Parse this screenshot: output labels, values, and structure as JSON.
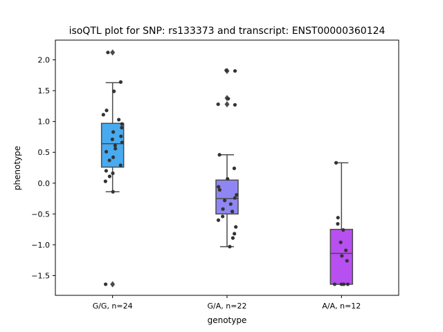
{
  "chart_data": {
    "type": "box",
    "title": "isoQTL plot for SNP: rs133373 and transcript: ENST00000360124",
    "xlabel": "genotype",
    "ylabel": "phenotype",
    "ylim": [
      -1.82,
      2.32
    ],
    "yticks": [
      -1.5,
      -1.0,
      -0.5,
      0.0,
      0.5,
      1.0,
      1.5,
      2.0
    ],
    "ytick_labels": [
      "−1.5",
      "−1.0",
      "−0.5",
      "0.0",
      "0.5",
      "1.0",
      "1.5",
      "2.0"
    ],
    "categories": [
      "G/G, n=24",
      "G/A, n=22",
      "A/A, n=12"
    ],
    "grid": false,
    "legend": "none",
    "boxes": [
      {
        "category": "G/G, n=24",
        "color": "#48abf0",
        "whisker_low": -0.14,
        "q1": 0.26,
        "median": 0.64,
        "q3": 0.97,
        "whisker_high": 1.63,
        "fliers": [
          2.12,
          -1.64
        ],
        "points": [
          2.12,
          1.64,
          1.49,
          1.18,
          1.11,
          1.03,
          0.96,
          0.9,
          0.83,
          0.76,
          0.71,
          0.66,
          0.61,
          0.56,
          0.51,
          0.42,
          0.37,
          0.29,
          0.2,
          0.16,
          0.11,
          0.03,
          -0.14,
          -1.64
        ]
      },
      {
        "category": "G/A, n=22",
        "color": "#8f86f2",
        "whisker_low": -1.03,
        "q1": -0.5,
        "median": -0.25,
        "q3": 0.05,
        "whisker_high": 0.46,
        "fliers": [
          1.82,
          1.38,
          1.28
        ],
        "points": [
          1.83,
          1.37,
          1.27,
          0.46,
          0.24,
          0.07,
          -0.06,
          -0.11,
          -0.19,
          -0.24,
          -0.28,
          -0.34,
          -0.42,
          -0.46,
          -0.54,
          -0.6,
          -0.71,
          -0.82,
          -0.89,
          -1.03,
          1.82,
          1.28
        ]
      },
      {
        "category": "A/A, n=12",
        "color": "#b84ff0",
        "whisker_low": -1.64,
        "q1": -1.64,
        "median": -1.14,
        "q3": -0.75,
        "whisker_high": 0.33,
        "fliers": [],
        "points": [
          0.33,
          -0.56,
          -0.66,
          -0.76,
          -0.96,
          -1.09,
          -1.18,
          -1.26,
          -1.64,
          -1.64,
          -1.64,
          -1.64
        ]
      }
    ]
  }
}
